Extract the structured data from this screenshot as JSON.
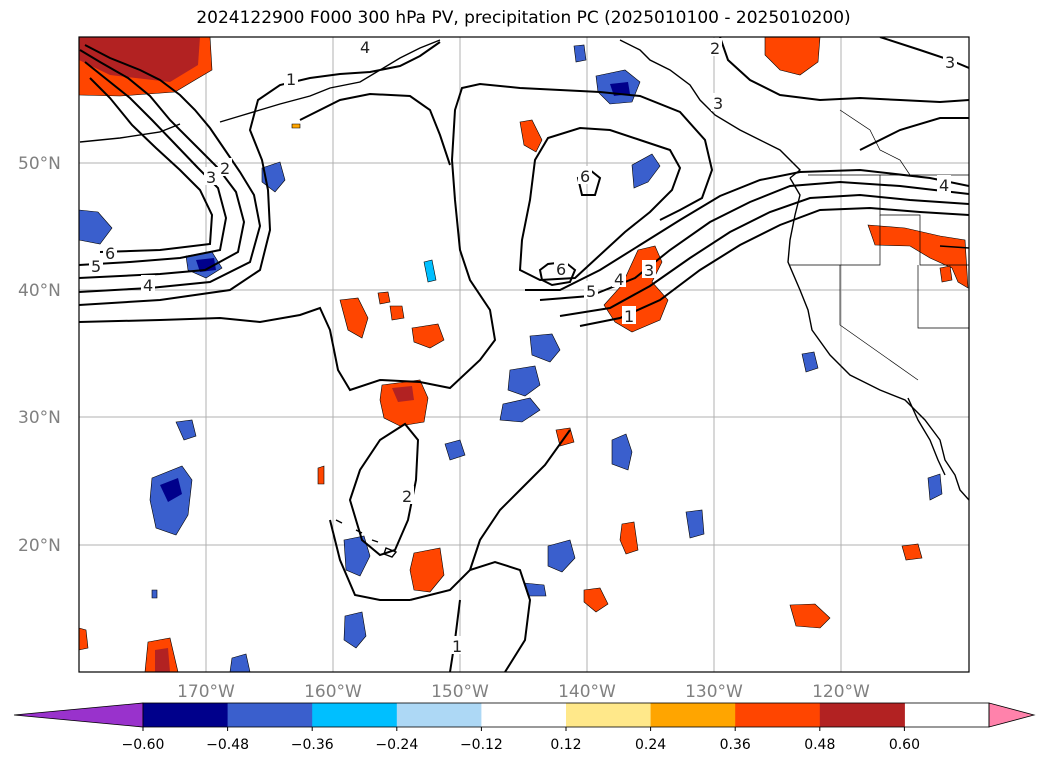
{
  "title": "2024122900 F000 300 hPa PV, precipitation PC (2025010100 - 2025010200)",
  "lat_labels": [
    "50°N",
    "40°N",
    "30°N",
    "20°N"
  ],
  "lon_labels": [
    "170°W",
    "160°W",
    "150°W",
    "140°W",
    "130°W",
    "120°W"
  ],
  "colorbar": {
    "ticks": [
      "−0.60",
      "−0.48",
      "−0.36",
      "−0.24",
      "−0.12",
      "0.12",
      "0.24",
      "0.36",
      "0.48",
      "0.60"
    ],
    "colors": [
      "#9932cc",
      "#00008b",
      "#3a5fcd",
      "#00bfff",
      "#add8f5",
      "#ffffff",
      "#ffe88a",
      "#ffa500",
      "#ff4500",
      "#b22222",
      "#ff82ab"
    ]
  },
  "contour_labels": [
    "1",
    "2",
    "3",
    "4",
    "5",
    "6"
  ],
  "map_data": {
    "projection": "PlateCarree",
    "lon_range": [
      -180,
      -110
    ],
    "lat_range": [
      10,
      60
    ],
    "fields": [
      "300 hPa PV contours (black)",
      "precipitation PC (shaded)"
    ]
  }
}
